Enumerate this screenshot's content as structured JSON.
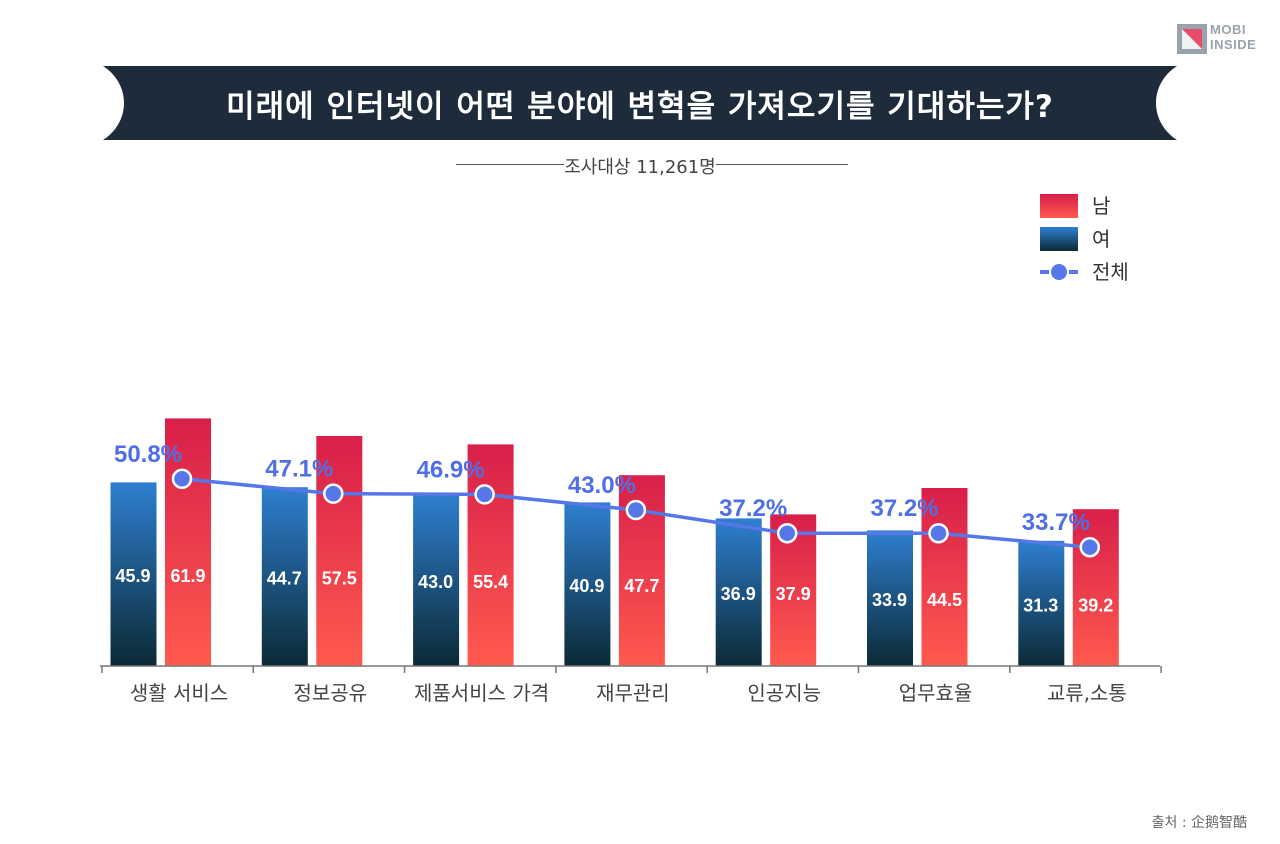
{
  "title": "미래에 인터넷이 어떤 분야에 변혁을 가져오기를 기대하는가?",
  "subtitle": "조사대상 11,261명",
  "logo": {
    "line1": "MOBI",
    "line2": "INSIDE"
  },
  "source": "출처 :  企鹅智酷",
  "colors": {
    "male_top": "#d81f4a",
    "male_bottom": "#ff5a4e",
    "female_top": "#2f7fd0",
    "female_bottom": "#0b2a35",
    "total": "#5577e8",
    "banner": "#1d2b3a"
  },
  "chart_data": {
    "type": "bar",
    "categories": [
      "생활 서비스",
      "정보공유",
      "제품서비스 가격",
      "재무관리",
      "인공지능",
      "업무효율",
      "교류,소통"
    ],
    "series": [
      {
        "name": "여",
        "values": [
          45.9,
          44.7,
          43.0,
          40.9,
          36.9,
          33.9,
          31.3
        ],
        "labels": [
          "45.9",
          "44.7",
          "43.0",
          "40.9",
          "36.9",
          "33.9",
          "31.3"
        ]
      },
      {
        "name": "남",
        "values": [
          61.9,
          57.5,
          55.4,
          47.7,
          37.9,
          44.5,
          39.2
        ],
        "labels": [
          "61.9",
          "57.5",
          "55.4",
          "47.7",
          "37.9",
          "44.5",
          "39.2"
        ]
      },
      {
        "name": "전체",
        "type": "line",
        "values": [
          50.8,
          47.1,
          46.9,
          43.0,
          37.2,
          37.2,
          33.7
        ],
        "labels": [
          "50.8%",
          "47.1%",
          "46.9%",
          "43.0%",
          "37.2%",
          "37.2%",
          "33.7%"
        ]
      }
    ],
    "legend": [
      "남",
      "여",
      "전체"
    ],
    "legend_position": "top-right"
  }
}
